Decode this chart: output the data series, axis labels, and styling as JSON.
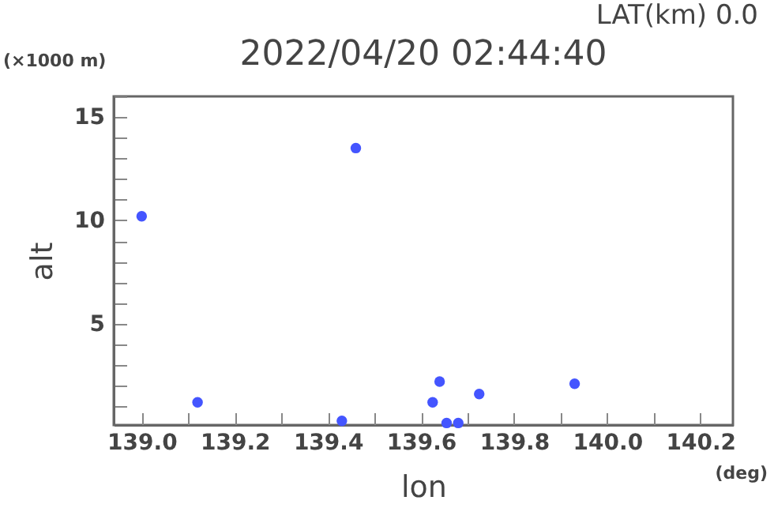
{
  "chart_data": {
    "type": "scatter",
    "title": "2022/04/20 02:44:40",
    "xlabel": "lon",
    "ylabel": "alt",
    "annotations": [
      "LAT(km) 0.0",
      "(×1000 m)",
      "(deg)"
    ],
    "x": [
      139.0,
      139.12,
      139.46,
      139.625,
      139.64,
      139.43,
      139.725,
      139.93,
      139.655,
      139.68
    ],
    "series": [
      {
        "color": "#4455ff",
        "values": [
          10.2,
          1.2,
          13.5,
          1.2,
          2.2,
          0.3,
          1.6,
          2.1,
          0.2,
          0.2
        ]
      }
    ],
    "marker": "circle",
    "grid": false,
    "xlim": [
      138.94,
      140.27
    ],
    "ylim": [
      0.1,
      16
    ],
    "xticks": [
      {
        "value": 139,
        "label": "139.0"
      },
      {
        "value": 139.1,
        "label": null
      },
      139.2,
      {
        "value": 139.3,
        "label": null
      },
      139.4,
      {
        "value": 139.5,
        "label": null
      },
      139.6,
      {
        "value": 139.7,
        "label": null
      },
      139.8,
      {
        "value": 139.9,
        "label": null
      },
      {
        "value": 140,
        "label": "140.0"
      },
      {
        "value": 140.1,
        "label": null
      },
      140.2
    ],
    "yticks": [
      {
        "value": 1,
        "label": null
      },
      {
        "value": 2,
        "label": null
      },
      {
        "value": 3,
        "label": null
      },
      {
        "value": 4,
        "label": null
      },
      5,
      {
        "value": 6,
        "label": null
      },
      {
        "value": 7,
        "label": null
      },
      {
        "value": 8,
        "label": null
      },
      {
        "value": 9,
        "label": null
      },
      10,
      {
        "value": 11,
        "label": null
      },
      {
        "value": 12,
        "label": null
      },
      {
        "value": 13,
        "label": null
      },
      {
        "value": 14,
        "label": null
      },
      15,
      {
        "value": 16,
        "label": null
      }
    ]
  }
}
